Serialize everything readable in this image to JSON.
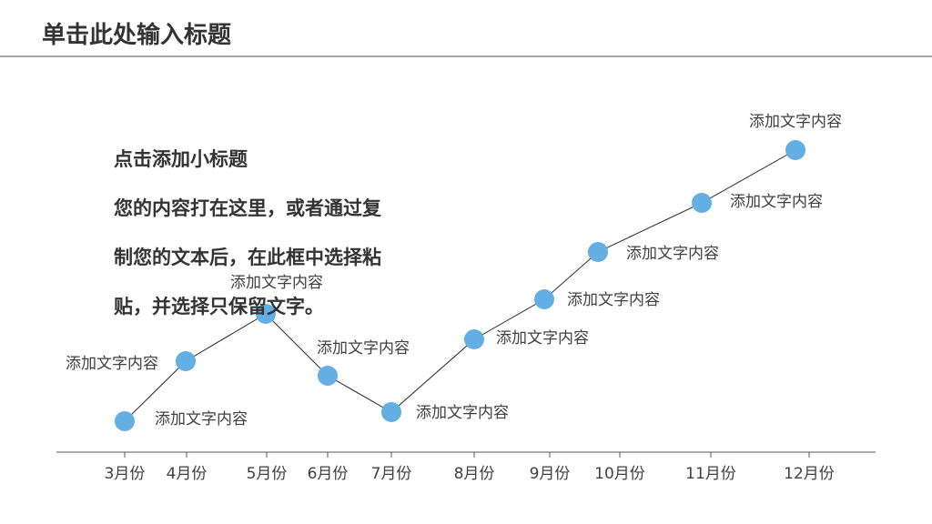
{
  "header": {
    "title": "单击此处输入标题"
  },
  "textbox": {
    "subtitle": "点击添加小标题",
    "lines": [
      "您的内容打在这里，或者通过复",
      "制您的文本后，在此框中选择粘",
      "贴，并选择只保留文字。"
    ]
  },
  "chart_data": {
    "type": "line",
    "categories": [
      "3月份",
      "4月份",
      "5月份",
      "6月份",
      "7月份",
      "8月份",
      "9月份",
      "10月份",
      "11月份",
      "12月份"
    ],
    "series": [
      {
        "color": "#63aee3",
        "values": [
          8.5,
          25,
          38,
          21,
          11,
          31,
          42,
          55,
          68.5,
          83
        ],
        "point_labels": [
          "添加文字内容",
          "添加文字内容",
          "添加文字内容",
          "添加文字内容",
          "添加文字内容",
          "添加文字内容",
          "添加文字内容",
          "添加文字内容",
          "添加文字内容",
          "添加文字内容"
        ]
      }
    ],
    "ylim": [
      0,
      94
    ]
  }
}
